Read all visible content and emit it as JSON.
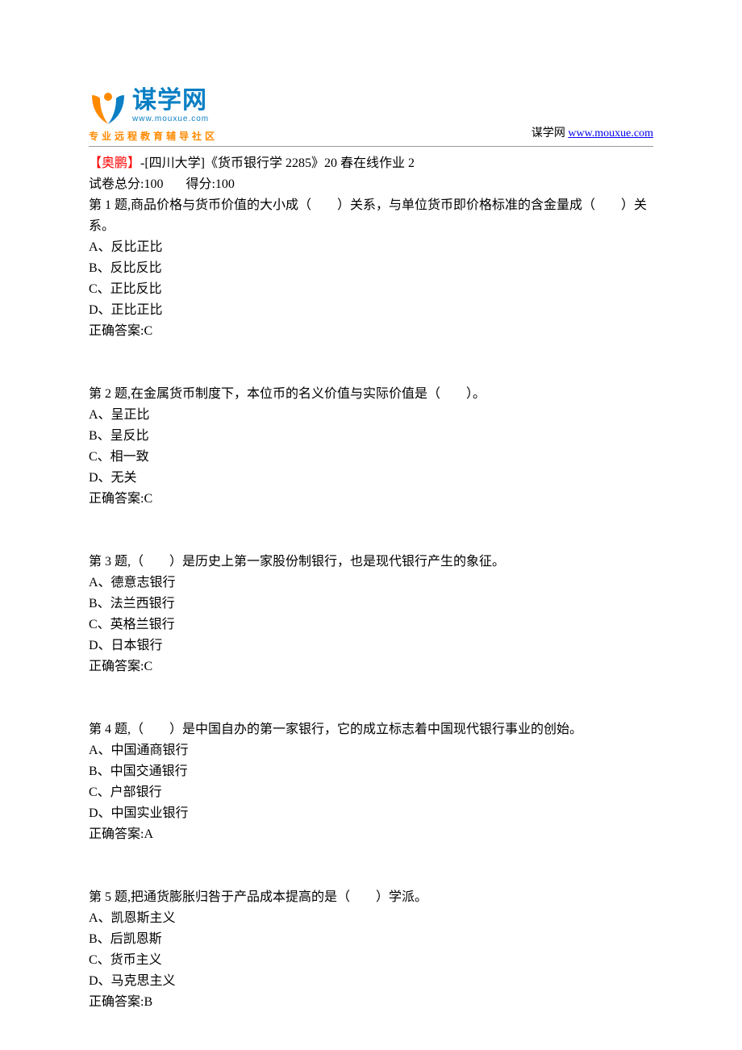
{
  "header": {
    "logo_title": "谋学网",
    "logo_url": "www.mouxue.com",
    "logo_tagline": "专业远程教育辅导社区",
    "right_label": "谋学网 ",
    "right_link_text": "www.mouxue.com",
    "logo_colors": {
      "blue": "#0a7fc4",
      "orange": "#ff8a00"
    }
  },
  "doc": {
    "title_prefix": "【奥鹏】",
    "title_rest": "-[四川大学]《货币银行学 2285》20 春在线作业 2",
    "score_label_total": "试卷总分:100",
    "score_label_got": "得分:100"
  },
  "questions": [
    {
      "stem": "第 1 题,商品价格与货币价值的大小成（　　）关系，与单位货币即价格标准的含金量成（　　）关系。",
      "options": [
        "A、反比正比",
        "B、反比反比",
        "C、正比反比",
        "D、正比正比"
      ],
      "answer": "正确答案:C"
    },
    {
      "stem": "第 2 题,在金属货币制度下，本位币的名义价值与实际价值是（　　）。",
      "options": [
        "A、呈正比",
        "B、呈反比",
        "C、相一致",
        "D、无关"
      ],
      "answer": "正确答案:C"
    },
    {
      "stem": "第 3 题,（　　）是历史上第一家股份制银行，也是现代银行产生的象征。",
      "options": [
        "A、德意志银行",
        "B、法兰西银行",
        "C、英格兰银行",
        "D、日本银行"
      ],
      "answer": "正确答案:C"
    },
    {
      "stem": "第 4 题,（　　）是中国自办的第一家银行，它的成立标志着中国现代银行事业的创始。",
      "options": [
        "A、中国通商银行",
        "B、中国交通银行",
        "C、户部银行",
        "D、中国实业银行"
      ],
      "answer": "正确答案:A"
    },
    {
      "stem": "第 5 题,把通货膨胀归咎于产品成本提高的是（　　）学派。",
      "options": [
        "A、凯恩斯主义",
        "B、后凯恩斯",
        "C、货币主义",
        "D、马克思主义"
      ],
      "answer": "正确答案:B"
    }
  ]
}
